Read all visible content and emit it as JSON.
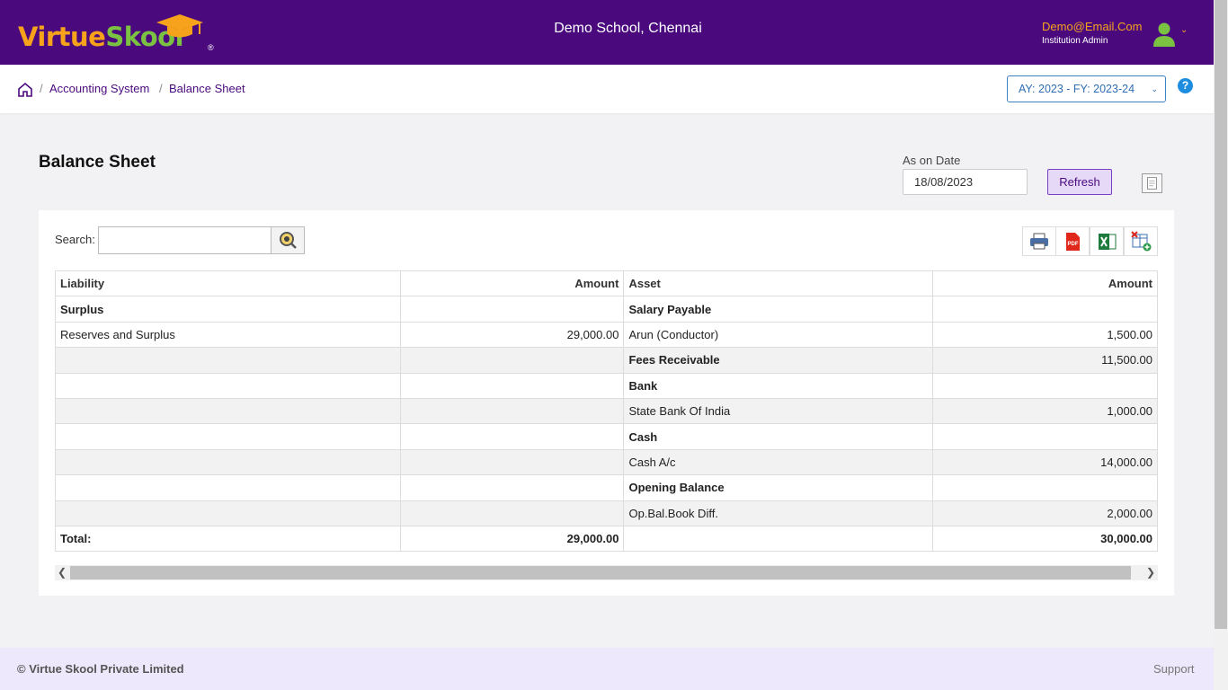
{
  "header": {
    "logo_text_1": "Virtue",
    "logo_text_2": "Skool",
    "logo_reg": "®",
    "school_name": "Demo School, Chennai",
    "user_email": "Demo@Email.Com",
    "user_role": "Institution Admin",
    "brand_color": "#4a0a7e",
    "accent_color": "#f7a21b"
  },
  "breadcrumb": {
    "items": [
      "Accounting System",
      "Balance Sheet"
    ],
    "separator": "/",
    "academic_year": "AY: 2023 - FY: 2023-24"
  },
  "page": {
    "title": "Balance Sheet",
    "date_label": "As on Date",
    "date_value": "18/08/2023",
    "refresh_label": "Refresh",
    "search_label": "Search:"
  },
  "table": {
    "headers": [
      "Liability",
      "Amount",
      "Asset",
      "Amount"
    ],
    "rows": [
      {
        "liability": "Surplus",
        "l_amount": "",
        "asset": "Salary Payable",
        "a_amount": ""
      },
      {
        "liability": "Reserves and Surplus",
        "l_amount": "29,000.00",
        "asset": "Arun (Conductor)",
        "a_amount": "1,500.00"
      },
      {
        "liability": "",
        "l_amount": "",
        "asset": "Fees Receivable",
        "a_amount": "11,500.00"
      },
      {
        "liability": "",
        "l_amount": "",
        "asset": "Bank",
        "a_amount": ""
      },
      {
        "liability": "",
        "l_amount": "",
        "asset": "State Bank Of India",
        "a_amount": "1,000.00"
      },
      {
        "liability": "",
        "l_amount": "",
        "asset": "Cash",
        "a_amount": ""
      },
      {
        "liability": "",
        "l_amount": "",
        "asset": "Cash A/c",
        "a_amount": "14,000.00"
      },
      {
        "liability": "",
        "l_amount": "",
        "asset": "Opening Balance",
        "a_amount": ""
      },
      {
        "liability": "",
        "l_amount": "",
        "asset": "Op.Bal.Book Diff.",
        "a_amount": "2,000.00"
      }
    ],
    "total": {
      "label": "Total:",
      "l_amount": "29,000.00",
      "a_amount": "30,000.00"
    }
  },
  "footer": {
    "copyright": "© Virtue Skool Private Limited",
    "support": "Support"
  },
  "icons": [
    "home-icon",
    "search-icon",
    "print-icon",
    "pdf-icon",
    "excel-icon",
    "column-settings-icon",
    "user-avatar-icon",
    "help-icon",
    "export-icon"
  ]
}
